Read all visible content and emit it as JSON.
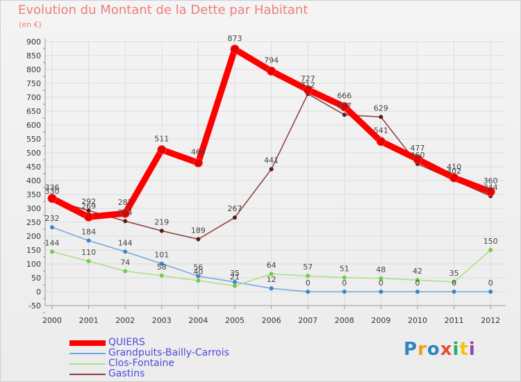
{
  "title": "Evolution du Montant de la Dette par Habitant",
  "subtitle": "(en €)",
  "brand": "Proxiti",
  "chart_data": {
    "type": "line",
    "title": "Evolution du Montant de la Dette par Habitant",
    "ylabel": "(en €)",
    "xlabel": "",
    "ylim": [
      -50,
      900
    ],
    "y_ticks": [
      -50,
      0,
      50,
      100,
      150,
      200,
      250,
      300,
      350,
      400,
      450,
      500,
      550,
      600,
      650,
      700,
      750,
      800,
      850,
      900
    ],
    "categories": [
      "2000",
      "2001",
      "2002",
      "2003",
      "2004",
      "2005",
      "2006",
      "2007",
      "2008",
      "2009",
      "2010",
      "2011",
      "2012"
    ],
    "grid": true,
    "legend_position": "bottom-left",
    "series": [
      {
        "name": "QUIERS",
        "color": "#ff0000",
        "point_color": "#e60000",
        "width": 9,
        "values": [
          336,
          269,
          282,
          511,
          464,
          873,
          794,
          727,
          666,
          541,
          477,
          410,
          360
        ]
      },
      {
        "name": "Grandpuits-Bailly-Carrois",
        "color": "#6fa8dc",
        "point_color": "#3d85c6",
        "width": 1.5,
        "values": [
          232,
          184,
          144,
          101,
          56,
          35,
          12,
          0,
          0,
          0,
          0,
          0,
          0
        ]
      },
      {
        "name": "Clos-Fontaine",
        "color": "#a8e07f",
        "point_color": "#6fcf3f",
        "width": 1.5,
        "values": [
          144,
          110,
          74,
          58,
          40,
          21,
          64,
          57,
          51,
          48,
          42,
          35,
          150
        ]
      },
      {
        "name": "Gastins",
        "color": "#8b3a3a",
        "point_color": "#5a1a1a",
        "width": 1.5,
        "values": [
          330,
          292,
          254,
          219,
          189,
          267,
          441,
          712,
          637,
          629,
          460,
          402,
          344
        ]
      }
    ]
  },
  "logo_colors": [
    "#2e86c1",
    "#f39c12",
    "#2e86c1",
    "#e74c3c",
    "#27ae60",
    "#f1c40f",
    "#8e44ad"
  ]
}
